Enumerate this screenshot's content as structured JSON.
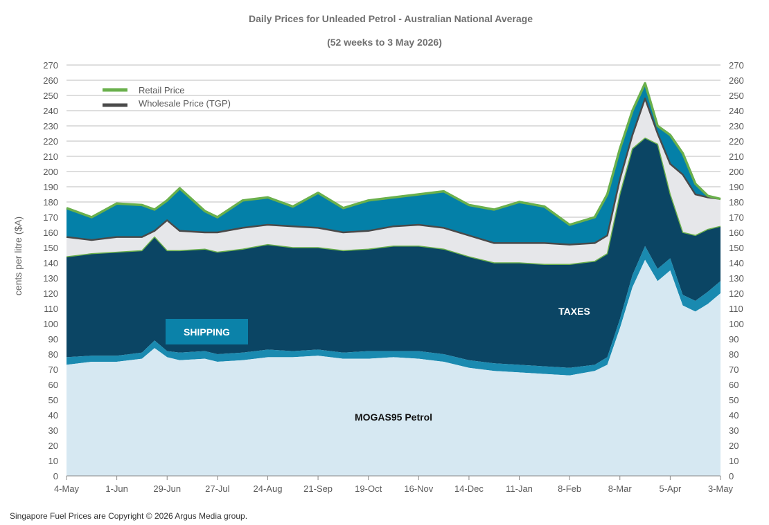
{
  "colors": {
    "retail": "#6ab04c",
    "wholesale": "#4a4a4a",
    "mogas_fill": "#d6e8f2",
    "shipping_fill": "#1a8ab0",
    "taxes_fill": "#0b4564",
    "gap_fill": "#e6e7ea",
    "margin_fill": "#0480a8",
    "grid": "#bdbdbd",
    "title": "#707070",
    "shipping_label_bg": "#0b82a9"
  },
  "chart_data": {
    "type": "area",
    "title": "Daily Prices for Unleaded Petrol - Australian  National  Average",
    "subtitle": "(52 weeks  to 3 May 2026)",
    "ylabel": "cents per litre ($A)",
    "ylim": [
      0,
      270
    ],
    "yticks": [
      0,
      10,
      20,
      30,
      40,
      50,
      60,
      70,
      80,
      90,
      100,
      110,
      120,
      130,
      140,
      150,
      160,
      170,
      180,
      190,
      200,
      210,
      220,
      230,
      240,
      250,
      260,
      270
    ],
    "xlim": [
      "2025-05-04",
      "2026-05-03"
    ],
    "xticks": [
      "4-May",
      "1-Jun",
      "29-Jun",
      "27-Jul",
      "24-Aug",
      "21-Sep",
      "19-Oct",
      "16-Nov",
      "14-Dec",
      "11-Jan",
      "8-Feb",
      "8-Mar",
      "5-Apr",
      "3-May"
    ],
    "grid": true,
    "legend_position": "top-left",
    "legend": [
      {
        "label": "Retail Price",
        "color": "#6ab04c"
      },
      {
        "label": "Wholesale Price (TGP)",
        "color": "#4a4a4a"
      }
    ],
    "annotations": {
      "shipping": "SHIPPING",
      "taxes": "TAXES",
      "mogas": "MOGAS95 Petrol"
    },
    "footnote": "Singapore Fuel Prices are Copyright © 2026 Argus Media group.",
    "series": [
      {
        "name": "MOGAS95 Petrol",
        "x": [
          "2025-05-04",
          "2025-05-18",
          "2025-06-01",
          "2025-06-15",
          "2025-06-22",
          "2025-06-29",
          "2025-07-06",
          "2025-07-20",
          "2025-07-27",
          "2025-08-10",
          "2025-08-24",
          "2025-09-07",
          "2025-09-21",
          "2025-10-05",
          "2025-10-19",
          "2025-11-02",
          "2025-11-16",
          "2025-11-30",
          "2025-12-14",
          "2025-12-28",
          "2026-01-11",
          "2026-01-25",
          "2026-02-08",
          "2026-02-22",
          "2026-03-01",
          "2026-03-08",
          "2026-03-15",
          "2026-03-22",
          "2026-03-29",
          "2026-04-05",
          "2026-04-12",
          "2026-04-19",
          "2026-04-26",
          "2026-05-03"
        ],
        "values": [
          73,
          75,
          75,
          77,
          84,
          78,
          76,
          77,
          75,
          76,
          78,
          78,
          79,
          77,
          77,
          78,
          77,
          75,
          71,
          69,
          68,
          67,
          66,
          69,
          73,
          97,
          124,
          142,
          128,
          135,
          112,
          108,
          113,
          120
        ]
      },
      {
        "name": "Shipping",
        "x": [
          "2025-05-04",
          "2025-05-18",
          "2025-06-01",
          "2025-06-15",
          "2025-06-22",
          "2025-06-29",
          "2025-07-06",
          "2025-07-20",
          "2025-07-27",
          "2025-08-10",
          "2025-08-24",
          "2025-09-07",
          "2025-09-21",
          "2025-10-05",
          "2025-10-19",
          "2025-11-02",
          "2025-11-16",
          "2025-11-30",
          "2025-12-14",
          "2025-12-28",
          "2026-01-11",
          "2026-01-25",
          "2026-02-08",
          "2026-02-22",
          "2026-03-01",
          "2026-03-08",
          "2026-03-15",
          "2026-03-22",
          "2026-03-29",
          "2026-04-05",
          "2026-04-12",
          "2026-04-19",
          "2026-04-26",
          "2026-05-03"
        ],
        "values": [
          78,
          79,
          79,
          81,
          89,
          82,
          81,
          82,
          80,
          81,
          83,
          82,
          83,
          81,
          82,
          82,
          82,
          80,
          76,
          74,
          73,
          72,
          71,
          73,
          78,
          103,
          132,
          151,
          136,
          143,
          119,
          115,
          121,
          128
        ]
      },
      {
        "name": "Taxes",
        "x": [
          "2025-05-04",
          "2025-05-18",
          "2025-06-01",
          "2025-06-15",
          "2025-06-22",
          "2025-06-29",
          "2025-07-06",
          "2025-07-20",
          "2025-07-27",
          "2025-08-10",
          "2025-08-24",
          "2025-09-07",
          "2025-09-21",
          "2025-10-05",
          "2025-10-19",
          "2025-11-02",
          "2025-11-16",
          "2025-11-30",
          "2025-12-14",
          "2025-12-28",
          "2026-01-11",
          "2026-01-25",
          "2026-02-08",
          "2026-02-22",
          "2026-03-01",
          "2026-03-08",
          "2026-03-15",
          "2026-03-22",
          "2026-03-29",
          "2026-04-05",
          "2026-04-12",
          "2026-04-19",
          "2026-04-26",
          "2026-05-03"
        ],
        "values": [
          144,
          146,
          147,
          148,
          157,
          148,
          148,
          149,
          147,
          149,
          152,
          150,
          150,
          148,
          149,
          151,
          151,
          149,
          144,
          140,
          140,
          139,
          139,
          141,
          146,
          185,
          215,
          222,
          218,
          185,
          160,
          158,
          162,
          164
        ]
      },
      {
        "name": "Wholesale Price (TGP)",
        "x": [
          "2025-05-04",
          "2025-05-18",
          "2025-06-01",
          "2025-06-15",
          "2025-06-22",
          "2025-06-29",
          "2025-07-06",
          "2025-07-20",
          "2025-07-27",
          "2025-08-10",
          "2025-08-24",
          "2025-09-07",
          "2025-09-21",
          "2025-10-05",
          "2025-10-19",
          "2025-11-02",
          "2025-11-16",
          "2025-11-30",
          "2025-12-14",
          "2025-12-28",
          "2026-01-11",
          "2026-01-25",
          "2026-02-08",
          "2026-02-22",
          "2026-03-01",
          "2026-03-08",
          "2026-03-15",
          "2026-03-22",
          "2026-03-29",
          "2026-04-05",
          "2026-04-12",
          "2026-04-19",
          "2026-04-26",
          "2026-05-03"
        ],
        "values": [
          157,
          155,
          157,
          157,
          161,
          168,
          161,
          160,
          160,
          163,
          165,
          164,
          163,
          160,
          161,
          164,
          165,
          163,
          158,
          153,
          153,
          153,
          152,
          153,
          158,
          195,
          224,
          248,
          225,
          205,
          198,
          185,
          183,
          182
        ]
      },
      {
        "name": "Retail Price",
        "x": [
          "2025-05-04",
          "2025-05-18",
          "2025-06-01",
          "2025-06-15",
          "2025-06-22",
          "2025-06-29",
          "2025-07-06",
          "2025-07-20",
          "2025-07-27",
          "2025-08-10",
          "2025-08-24",
          "2025-09-07",
          "2025-09-21",
          "2025-10-05",
          "2025-10-19",
          "2025-11-02",
          "2025-11-16",
          "2025-11-30",
          "2025-12-14",
          "2025-12-28",
          "2026-01-11",
          "2026-01-25",
          "2026-02-08",
          "2026-02-22",
          "2026-03-01",
          "2026-03-08",
          "2026-03-15",
          "2026-03-22",
          "2026-03-29",
          "2026-04-05",
          "2026-04-12",
          "2026-04-19",
          "2026-04-26",
          "2026-05-03"
        ],
        "values": [
          176,
          170,
          179,
          178,
          175,
          181,
          189,
          174,
          170,
          181,
          183,
          177,
          186,
          176,
          181,
          183,
          185,
          187,
          178,
          175,
          180,
          177,
          165,
          170,
          185,
          215,
          240,
          258,
          230,
          224,
          212,
          192,
          184,
          182
        ]
      }
    ]
  }
}
